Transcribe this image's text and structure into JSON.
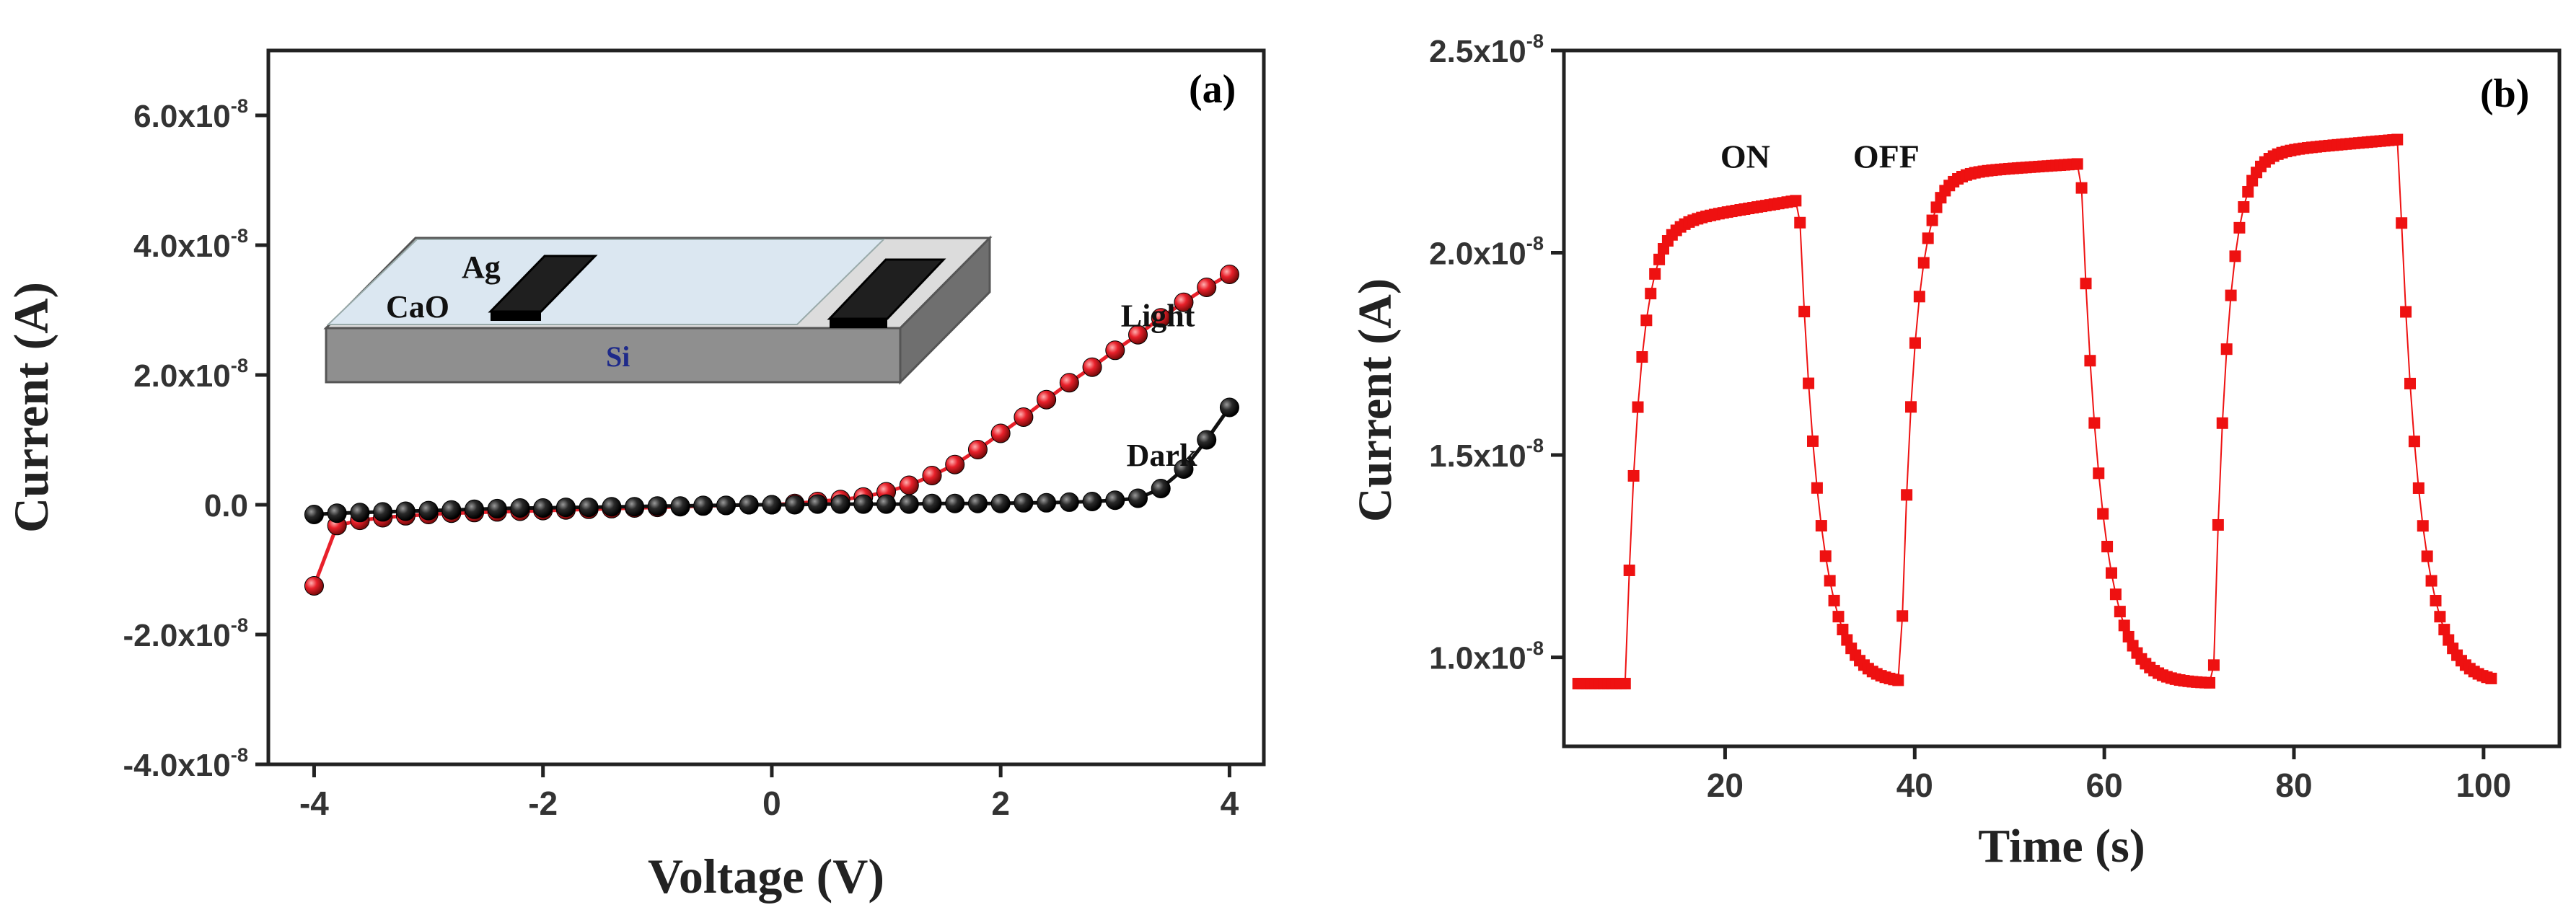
{
  "chart_data": [
    {
      "panel": "(a)",
      "type": "line",
      "xlabel": "Voltage (V)",
      "ylabel": "Current (A)",
      "xlim": [
        -4.4,
        4.3
      ],
      "ylim": [
        -4e-08,
        7e-08
      ],
      "xticks": [
        -4,
        -2,
        0,
        2,
        4
      ],
      "xtick_labels": [
        "-4",
        "-2",
        "0",
        "2",
        "4"
      ],
      "yticks": [
        -4e-08,
        -2e-08,
        0,
        2e-08,
        4e-08,
        6e-08
      ],
      "ytick_labels": [
        {
          "mant": "-4.0x10",
          "exp": "-8"
        },
        {
          "mant": "-2.0x10",
          "exp": "-8"
        },
        {
          "mant": "0.0",
          "exp": ""
        },
        {
          "mant": "2.0x10",
          "exp": "-8"
        },
        {
          "mant": "4.0x10",
          "exp": "-8"
        },
        {
          "mant": "6.0x10",
          "exp": "-8"
        }
      ],
      "series": [
        {
          "name": "Light",
          "color": "#e8202a",
          "x": [
            -4.0,
            -3.8,
            -3.6,
            -3.4,
            -3.2,
            -3.0,
            -2.8,
            -2.6,
            -2.4,
            -2.2,
            -2.0,
            -1.8,
            -1.6,
            -1.4,
            -1.2,
            -1.0,
            -0.8,
            -0.6,
            -0.4,
            -0.2,
            0.0,
            0.2,
            0.4,
            0.6,
            0.8,
            1.0,
            1.2,
            1.4,
            1.6,
            1.8,
            2.0,
            2.2,
            2.4,
            2.6,
            2.8,
            3.0,
            3.2,
            3.4,
            3.6,
            3.8,
            4.0
          ],
          "y": [
            -1.25e-08,
            -3.2e-09,
            -2.4e-09,
            -2e-09,
            -1.7e-09,
            -1.5e-09,
            -1.3e-09,
            -1.2e-09,
            -1.1e-09,
            -1e-09,
            -9e-10,
            -8e-10,
            -7e-10,
            -6e-10,
            -5e-10,
            -4e-10,
            -3e-10,
            -2e-10,
            -1e-10,
            0.0,
            0.0,
            2e-10,
            5e-10,
            8e-10,
            1.2e-09,
            2e-09,
            3e-09,
            4.5e-09,
            6.2e-09,
            8.5e-09,
            1.1e-08,
            1.35e-08,
            1.62e-08,
            1.88e-08,
            2.12e-08,
            2.38e-08,
            2.62e-08,
            2.88e-08,
            3.12e-08,
            3.35e-08,
            3.55e-08
          ]
        },
        {
          "name": "Dark",
          "color": "#111111",
          "x": [
            -4.0,
            -3.8,
            -3.6,
            -3.4,
            -3.2,
            -3.0,
            -2.8,
            -2.6,
            -2.4,
            -2.2,
            -2.0,
            -1.8,
            -1.6,
            -1.4,
            -1.2,
            -1.0,
            -0.8,
            -0.6,
            -0.4,
            -0.2,
            0.0,
            0.2,
            0.4,
            0.6,
            0.8,
            1.0,
            1.2,
            1.4,
            1.6,
            1.8,
            2.0,
            2.2,
            2.4,
            2.6,
            2.8,
            3.0,
            3.2,
            3.4,
            3.6,
            3.8,
            4.0
          ],
          "y": [
            -1.5e-09,
            -1.3e-09,
            -1.2e-09,
            -1.1e-09,
            -1e-09,
            -9e-10,
            -8e-10,
            -7e-10,
            -6e-10,
            -5e-10,
            -5e-10,
            -4e-10,
            -4e-10,
            -3e-10,
            -3e-10,
            -2e-10,
            -2e-10,
            -1e-10,
            -1e-10,
            0.0,
            0.0,
            0.0,
            1e-10,
            1e-10,
            1e-10,
            1e-10,
            1e-10,
            2e-10,
            2e-10,
            2e-10,
            2e-10,
            3e-10,
            3e-10,
            4e-10,
            5e-10,
            7e-10,
            1e-09,
            2.5e-09,
            5.5e-09,
            1e-08,
            1.5e-08
          ]
        }
      ],
      "annotations": [
        {
          "text": "Light",
          "x": 3.05,
          "y": 2.75e-08
        },
        {
          "text": "Dark",
          "x": 3.1,
          "y": 6e-09
        }
      ],
      "inset": {
        "substrate_label": "Si",
        "film_label": "CaO",
        "electrode_label": "Ag"
      }
    },
    {
      "panel": "(b)",
      "type": "scatter",
      "xlabel": "Time (s)",
      "ylabel": "Current (A)",
      "xlim": [
        3,
        108
      ],
      "ylim": [
        7.8e-09,
        2.5e-08
      ],
      "xticks": [
        20,
        40,
        60,
        80,
        100
      ],
      "xtick_labels": [
        "20",
        "40",
        "60",
        "80",
        "100"
      ],
      "yticks": [
        1e-08,
        1.5e-08,
        2e-08,
        2.5e-08
      ],
      "ytick_labels": [
        {
          "mant": "1.0x10",
          "exp": "-8"
        },
        {
          "mant": "1.5x10",
          "exp": "-8"
        },
        {
          "mant": "2.0x10",
          "exp": "-8"
        },
        {
          "mant": "2.5x10",
          "exp": "-8"
        }
      ],
      "color": "#ee1111",
      "baseline": 9.35e-09,
      "cycles": [
        {
          "on": 9.5,
          "off": 27.8,
          "plateau_start": 2.06e-08,
          "plateau_end": 2.13e-08
        },
        {
          "on": 38.5,
          "off": 57.5,
          "plateau_start": 2.19e-08,
          "plateau_end": 2.22e-08
        },
        {
          "on": 71.5,
          "off": 91.0,
          "plateau_start": 2.24e-08,
          "plateau_end": 2.28e-08
        }
      ],
      "t_start": 4.5,
      "t_end": 101,
      "sample_interval": 0.45,
      "annotations": [
        {
          "text": "ON",
          "x": 19.5,
          "y": 2.21e-08
        },
        {
          "text": "OFF",
          "x": 33.5,
          "y": 2.21e-08
        }
      ]
    }
  ]
}
